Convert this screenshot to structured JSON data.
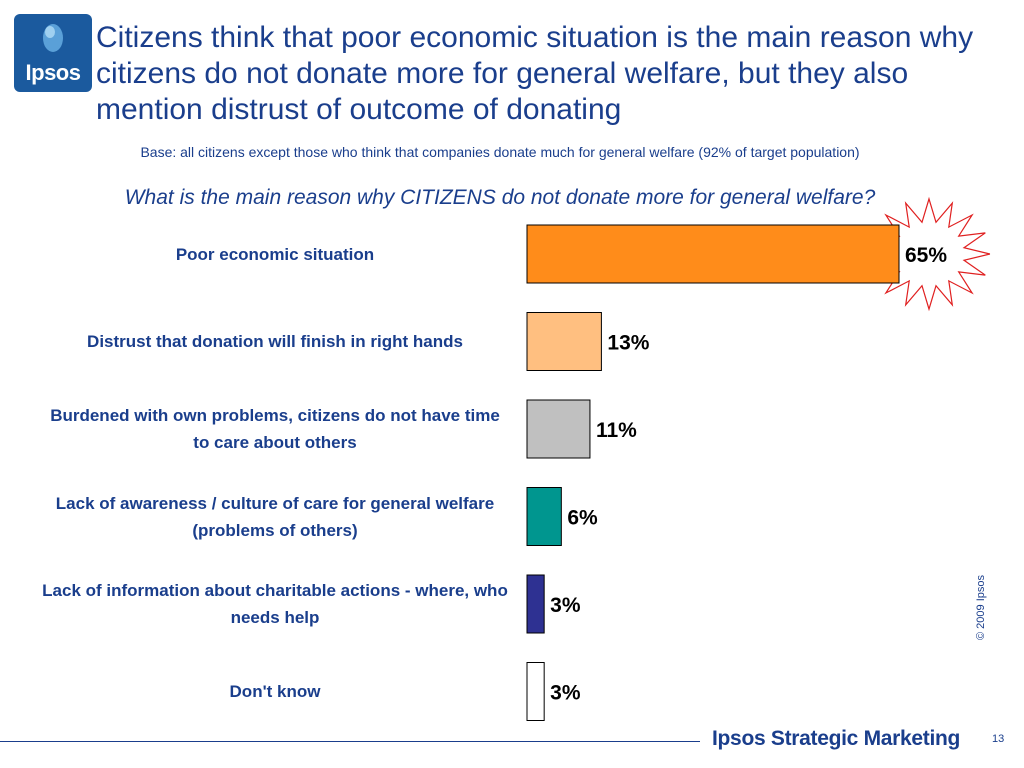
{
  "logo": {
    "text": "Ipsos"
  },
  "header": {
    "title": "Citizens think that poor economic situation is the main reason why citizens do not donate more for general welfare, but they also mention distrust of outcome of donating",
    "base": "Base: all citizens except those who think that companies donate much for general welfare (92% of target population)",
    "question": "What is the main reason why CITIZENS do not donate more for general welfare?"
  },
  "chart_data": {
    "type": "bar",
    "orientation": "horizontal",
    "categories": [
      "Poor economic situation",
      "Distrust that donation will finish in right hands",
      "Burdened with own problems, citizens do not have time to care about others",
      "Lack of awareness / culture of care for general welfare (problems of others)",
      "Lack of information about charitable actions - where, who needs help",
      "Don't know"
    ],
    "values": [
      65,
      13,
      11,
      6,
      3,
      3
    ],
    "data_labels": [
      "65%",
      "13%",
      "11%",
      "6%",
      "3%",
      "3%"
    ],
    "colors": [
      "#ff8c1a",
      "#ffbf80",
      "#c0c0c0",
      "#00968f",
      "#2e3192",
      "#ffffff"
    ],
    "highlight": {
      "index": 0,
      "shape": "starburst"
    },
    "xlim": [
      0,
      65
    ],
    "grid": false
  },
  "footer": {
    "copyright": "© 2009 Ipsos",
    "brand": "Ipsos Strategic Marketing",
    "page_number": "13"
  }
}
